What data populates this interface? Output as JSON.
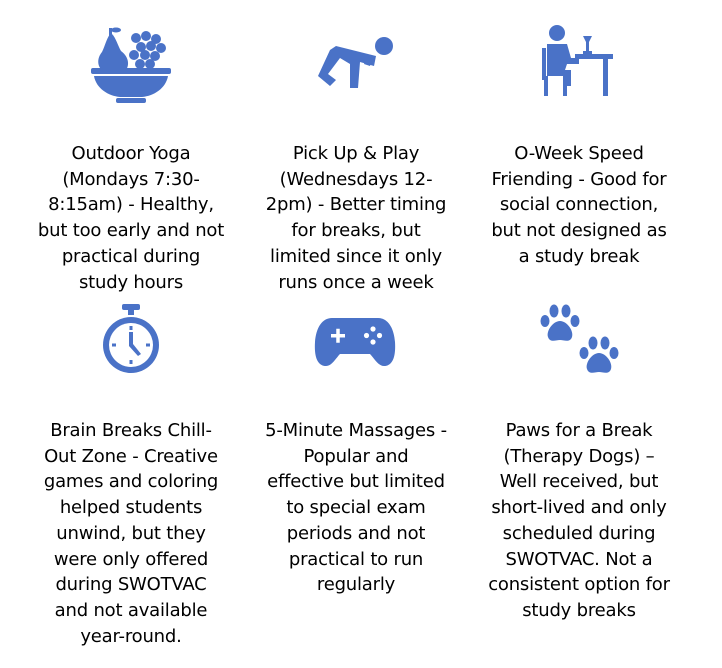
{
  "theme": {
    "accent": "#4a72c7",
    "text": "#000000",
    "background": "#ffffff"
  },
  "items": [
    {
      "icon": "fruit-bowl-icon",
      "caption": "Outdoor Yoga\n(Mondays 7:30-\n8:15am) - Healthy,\nbut too early and not\npractical during\nstudy hours"
    },
    {
      "icon": "crawling-person-icon",
      "caption": "Pick Up & Play\n(Wednesdays 12-\n2pm) - Better timing\nfor breaks, but\nlimited since it only\nruns once a week"
    },
    {
      "icon": "person-at-table-icon",
      "caption": "O-Week Speed\nFriending - Good for\nsocial connection,\nbut not designed as\na study break"
    },
    {
      "icon": "stopwatch-icon",
      "caption": "Brain Breaks Chill-\nOut Zone - Creative\ngames and coloring\nhelped students\nunwind, but they\nwere only offered\nduring SWOTVAC\nand not available\nyear-round."
    },
    {
      "icon": "game-controller-icon",
      "caption": "5-Minute Massages -\nPopular and\neffective but limited\nto special exam\nperiods and not\npractical to run\nregularly"
    },
    {
      "icon": "paw-prints-icon",
      "caption": "Paws for a Break\n(Therapy Dogs) –\nWell received, but\nshort-lived and only\nscheduled during\nSWOTVAC. Not a\nconsistent option for\nstudy breaks"
    }
  ]
}
